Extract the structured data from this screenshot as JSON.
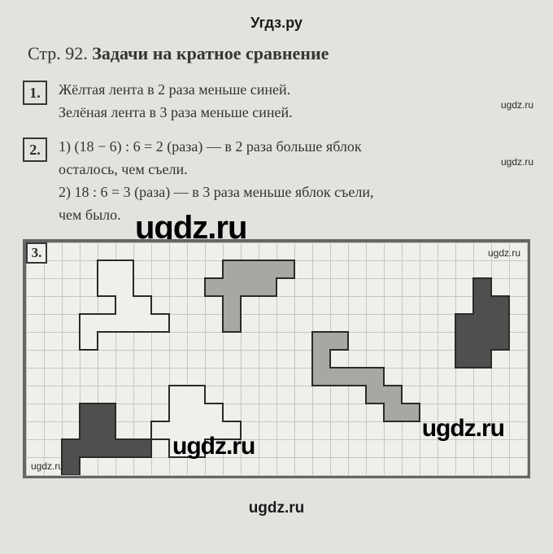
{
  "watermarks": {
    "top": "Угдз.ру",
    "big_center": "ugdz.ru",
    "small": "ugdz.ru",
    "bottom": "ugdz.ru"
  },
  "title": {
    "prefix": "Стр. 92. ",
    "bold": "Задачи на кратное сравнение"
  },
  "tasks": {
    "t1": {
      "num": "1.",
      "line1": "Жёлтая лента в 2 раза меньше синей.",
      "line2": "Зелёная лента в 3 раза меньше синей."
    },
    "t2": {
      "num": "2.",
      "line1": "1) (18 − 6) : 6 = 2 (раза) — в 2 раза больше яблок",
      "line1b": "осталось, чем съели.",
      "line2": "2) 18 : 6 = 3 (раза) — в 3 раза меньше яблок съели,",
      "line2b": "чем было."
    },
    "t3": {
      "num": "3."
    }
  },
  "grid": {
    "cell": 22,
    "cols": 28,
    "rows": 13,
    "bg": "#efefec",
    "line": "#c6c6c2",
    "stroke": "#2a2a2a",
    "fill_white": "#efefec",
    "fill_mid": "#a7a7a3",
    "fill_dark": "#4f4f4d",
    "shapes": [
      {
        "fill": "white",
        "outline": true,
        "cells": [
          [
            4,
            1
          ],
          [
            5,
            1
          ],
          [
            4,
            2
          ],
          [
            5,
            2
          ],
          [
            5,
            3
          ],
          [
            6,
            3
          ],
          [
            3,
            4
          ],
          [
            4,
            4
          ],
          [
            5,
            4
          ],
          [
            6,
            4
          ],
          [
            7,
            4
          ],
          [
            3,
            5
          ]
        ]
      },
      {
        "fill": "mid",
        "outline": true,
        "cells": [
          [
            11,
            1
          ],
          [
            12,
            1
          ],
          [
            13,
            1
          ],
          [
            14,
            1
          ],
          [
            10,
            2
          ],
          [
            11,
            2
          ],
          [
            12,
            2
          ],
          [
            13,
            2
          ],
          [
            11,
            3
          ],
          [
            11,
            4
          ]
        ]
      },
      {
        "fill": "dark",
        "outline": true,
        "cells": [
          [
            25,
            2
          ],
          [
            25,
            3
          ],
          [
            26,
            3
          ],
          [
            24,
            4
          ],
          [
            25,
            4
          ],
          [
            26,
            4
          ],
          [
            24,
            5
          ],
          [
            25,
            5
          ],
          [
            26,
            5
          ],
          [
            24,
            6
          ],
          [
            25,
            6
          ]
        ]
      },
      {
        "fill": "mid",
        "outline": true,
        "cells": [
          [
            16,
            5
          ],
          [
            17,
            5
          ],
          [
            16,
            6
          ],
          [
            16,
            7
          ],
          [
            17,
            7
          ],
          [
            18,
            7
          ],
          [
            19,
            7
          ],
          [
            19,
            8
          ],
          [
            20,
            8
          ],
          [
            20,
            9
          ],
          [
            21,
            9
          ]
        ]
      },
      {
        "fill": "white",
        "outline": true,
        "cells": [
          [
            8,
            8
          ],
          [
            9,
            8
          ],
          [
            8,
            9
          ],
          [
            9,
            9
          ],
          [
            10,
            9
          ],
          [
            7,
            10
          ],
          [
            8,
            10
          ],
          [
            9,
            10
          ],
          [
            10,
            10
          ],
          [
            11,
            10
          ],
          [
            8,
            11
          ],
          [
            9,
            11
          ]
        ]
      },
      {
        "fill": "dark",
        "outline": true,
        "cells": [
          [
            3,
            9
          ],
          [
            4,
            9
          ],
          [
            3,
            10
          ],
          [
            4,
            10
          ],
          [
            2,
            11
          ],
          [
            3,
            11
          ],
          [
            4,
            11
          ],
          [
            5,
            11
          ],
          [
            6,
            11
          ],
          [
            2,
            12
          ]
        ]
      }
    ]
  }
}
